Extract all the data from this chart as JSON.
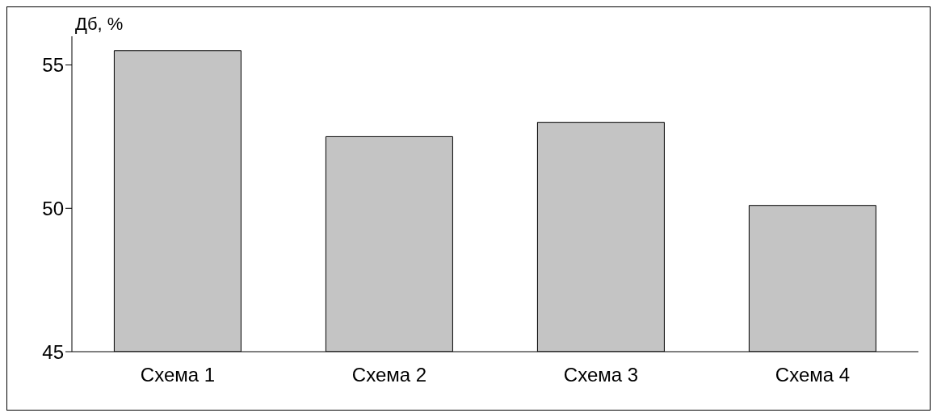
{
  "chart_data": {
    "type": "bar",
    "ylabel": "Дб, %",
    "categories": [
      "Схема 1",
      "Схема 2",
      "Схема 3",
      "Схема 4"
    ],
    "values": [
      55.5,
      52.5,
      53.0,
      50.1
    ],
    "color": "#c4c4c4",
    "ylim": [
      45,
      56
    ],
    "yticks": [
      45,
      50,
      55
    ],
    "grid": false
  }
}
